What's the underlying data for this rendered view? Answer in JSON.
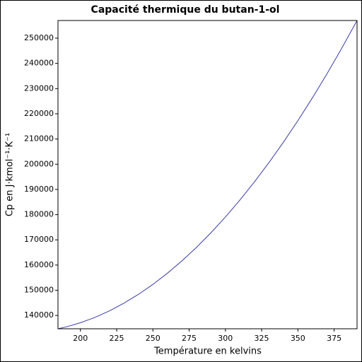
{
  "chart_data": {
    "type": "line",
    "title": "Capacité thermique du butan-1-ol",
    "x_label": "Température en kelvins",
    "y_label": "Cp en J·kmol⁻¹·K⁻¹",
    "x": [
      184.51,
      190,
      200,
      210,
      220,
      230,
      240,
      250,
      260,
      270,
      280,
      290,
      300,
      310,
      320,
      330,
      340,
      350,
      360,
      370,
      380,
      390.81
    ],
    "series": [
      {
        "color": "#3a3aa8",
        "values": [
          134728,
          135447,
          137112,
          139237,
          141822,
          144867,
          148373,
          152338,
          156763,
          161647,
          166992,
          172797,
          179062,
          185787,
          192972,
          200616,
          208721,
          217286,
          226310,
          235795,
          245739,
          257007
        ]
      }
    ],
    "xlim": [
      184.51,
      390.81
    ],
    "ylim": [
      134728,
      257007
    ],
    "xticks": [
      200,
      225,
      250,
      275,
      300,
      325,
      350,
      375
    ],
    "yticks": [
      140000,
      150000,
      160000,
      170000,
      180000,
      190000,
      200000,
      210000,
      220000,
      230000,
      240000,
      250000
    ],
    "grid": false
  }
}
